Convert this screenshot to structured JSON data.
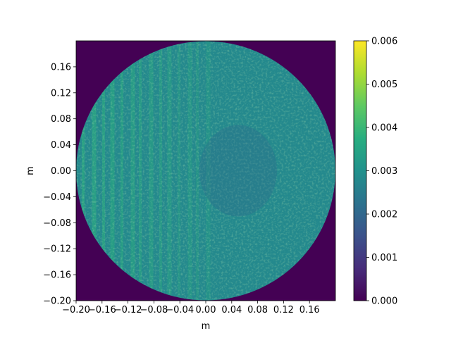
{
  "chart_data": {
    "type": "heatmap",
    "description_shape": "circular aperture",
    "xlabel": "m",
    "ylabel": "m",
    "xlim": [
      -0.2,
      0.2
    ],
    "ylim": [
      -0.2,
      0.2
    ],
    "x_ticks": [
      "−0.20",
      "−0.16",
      "−0.12",
      "−0.08",
      "−0.04",
      "0.00",
      "0.04",
      "0.08",
      "0.12",
      "0.16"
    ],
    "x_tick_values": [
      -0.2,
      -0.16,
      -0.12,
      -0.08,
      -0.04,
      0.0,
      0.04,
      0.08,
      0.12,
      0.16
    ],
    "y_ticks": [
      "−0.20",
      "−0.16",
      "−0.12",
      "−0.08",
      "−0.04",
      "0.00",
      "0.04",
      "0.08",
      "0.12",
      "0.16"
    ],
    "y_tick_values": [
      -0.2,
      -0.16,
      -0.12,
      -0.08,
      -0.04,
      0.0,
      0.04,
      0.08,
      0.12,
      0.16
    ],
    "colorbar": {
      "colormap": "viridis",
      "range": [
        0.0,
        0.006
      ],
      "ticks": [
        "0.000",
        "0.001",
        "0.002",
        "0.003",
        "0.004",
        "0.005",
        "0.006"
      ],
      "tick_values": [
        0.0,
        0.001,
        0.002,
        0.003,
        0.004,
        0.005,
        0.006
      ]
    },
    "aperture_radius": 0.2,
    "background_value": 0.0,
    "typical_value_in_aperture": 0.0028,
    "grid": false
  }
}
